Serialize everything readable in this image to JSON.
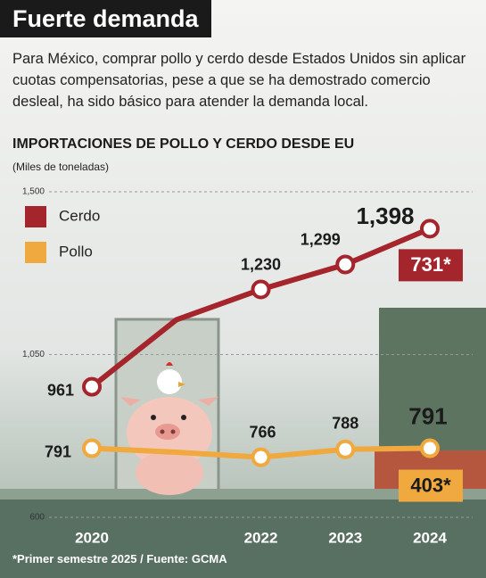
{
  "header": {
    "title": "Fuerte demanda",
    "description": "Para México, comprar pollo y cerdo desde Estados Unidos sin aplicar cuotas compensatorias, pese a que se ha demostrado comercio desleal, ha sido básico para atender la demanda local."
  },
  "chart_data": {
    "type": "line",
    "title": "IMPORTACIONES DE POLLO Y CERDO DESDE EU",
    "subtitle": "(Miles de toneladas)",
    "categories": [
      "2020",
      null,
      "2022",
      "2023",
      "2024"
    ],
    "series": [
      {
        "name": "Cerdo",
        "color": "#a5252c",
        "values": [
          961,
          1146,
          1230,
          1299,
          1398
        ],
        "value_labels": [
          "961",
          null,
          "1,230",
          "1,299",
          "1,398"
        ]
      },
      {
        "name": "Pollo",
        "color": "#f0a93e",
        "values": [
          791,
          780,
          766,
          788,
          791
        ],
        "value_labels": [
          "791",
          null,
          "766",
          "788",
          "791"
        ]
      }
    ],
    "ylim": [
      600,
      1500
    ],
    "yticks": [
      600,
      {
        "value": 1050,
        "label": "1,050"
      },
      {
        "value": 1500,
        "label": "1,500"
      }
    ],
    "grid": true,
    "legend": "top-left",
    "annotations": [
      {
        "text": "731*",
        "series": 0
      },
      {
        "text": "403*",
        "series": 1
      }
    ],
    "footnote": "*Primer semestre 2025 / Fuente: GCMA"
  }
}
